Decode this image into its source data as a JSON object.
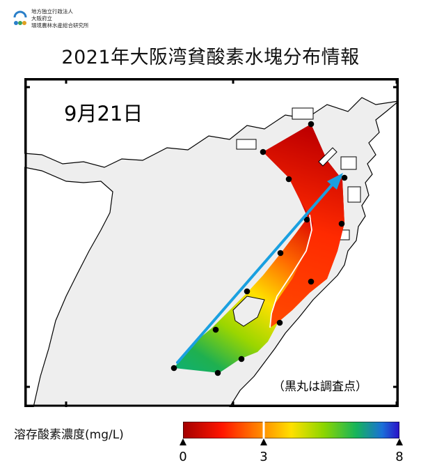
{
  "organization": {
    "line1": "地方独立行政法人",
    "line2": "大阪府立",
    "line3": "環境農林水産総合研究所"
  },
  "title": "2021年大阪湾貧酸素水塊分布情報",
  "map": {
    "date": "9月21日",
    "note": "（黒丸は調査点）",
    "stations": [
      {
        "id": 1,
        "lon": 0.0,
        "lat": 0.0
      },
      {
        "id": 2
      },
      {
        "id": 3
      },
      {
        "id": 4
      },
      {
        "id": 5
      },
      {
        "id": 6
      },
      {
        "id": 7
      },
      {
        "id": 8
      },
      {
        "id": 9
      },
      {
        "id": 10
      },
      {
        "id": 11
      },
      {
        "id": 12
      },
      {
        "id": 13
      },
      {
        "id": 14
      },
      {
        "id": 15
      }
    ]
  },
  "legend": {
    "label": "溶存酸素濃度(mg/L)",
    "ticks": [
      "0",
      "3",
      "8"
    ],
    "min": 0,
    "threshold": 3,
    "max": 8,
    "colors": [
      "#a30000",
      "#ff2a00",
      "#ffd400",
      "#8cd600",
      "#16b43c",
      "#1a6fd8",
      "#2a1acc"
    ]
  }
}
